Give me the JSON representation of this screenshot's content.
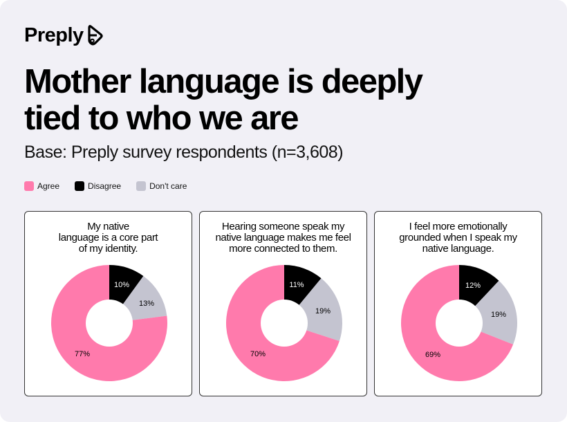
{
  "brand": {
    "name": "Preply"
  },
  "header": {
    "title_lines": [
      "Mother language is deeply",
      "tied to who we are"
    ],
    "subtitle": "Base: Preply survey respondents (n=3,608)"
  },
  "legend": [
    {
      "label": "Agree",
      "color": "#ff7aac"
    },
    {
      "label": "Disagree",
      "color": "#000000"
    },
    {
      "label": "Don't care",
      "color": "#c4c4d0"
    }
  ],
  "cards": [
    {
      "title_lines": [
        "My native",
        "language is a core part",
        "of my identity."
      ],
      "labels": {
        "disagree": "10%",
        "dontcare": "13%",
        "agree": "77%"
      }
    },
    {
      "title_lines": [
        "Hearing someone speak my",
        "native language makes me feel",
        "more connected to them."
      ],
      "labels": {
        "disagree": "11%",
        "dontcare": "19%",
        "agree": "70%"
      }
    },
    {
      "title_lines": [
        "I feel more emotionally",
        "grounded when I speak my",
        "native language."
      ],
      "labels": {
        "disagree": "12%",
        "dontcare": "19%",
        "agree": "69%"
      }
    }
  ],
  "chart_data": [
    {
      "type": "pie",
      "subtype": "donut",
      "title": "My native language is a core part of my identity.",
      "categories": [
        "Disagree",
        "Don't care",
        "Agree"
      ],
      "values": [
        10,
        13,
        77
      ],
      "colors": [
        "#000000",
        "#c4c4d0",
        "#ff7aac"
      ],
      "unit": "%"
    },
    {
      "type": "pie",
      "subtype": "donut",
      "title": "Hearing someone speak my native language makes me feel more connected to them.",
      "categories": [
        "Disagree",
        "Don't care",
        "Agree"
      ],
      "values": [
        11,
        19,
        70
      ],
      "colors": [
        "#000000",
        "#c4c4d0",
        "#ff7aac"
      ],
      "unit": "%"
    },
    {
      "type": "pie",
      "subtype": "donut",
      "title": "I feel more emotionally grounded when I speak my native language.",
      "categories": [
        "Disagree",
        "Don't care",
        "Agree"
      ],
      "values": [
        12,
        19,
        69
      ],
      "colors": [
        "#000000",
        "#c4c4d0",
        "#ff7aac"
      ],
      "unit": "%"
    }
  ]
}
